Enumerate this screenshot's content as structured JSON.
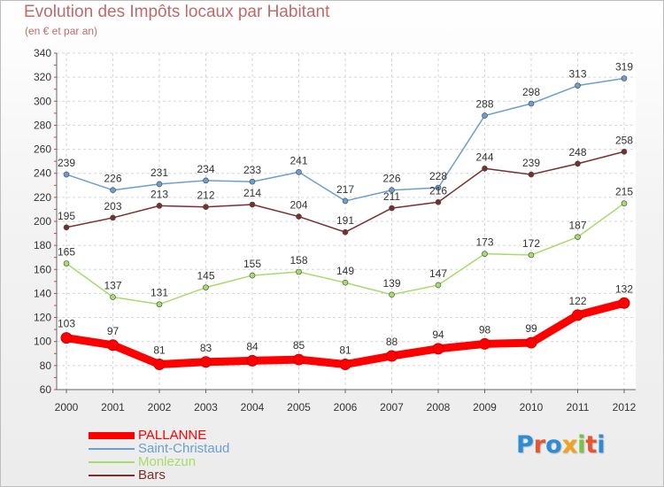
{
  "header": {
    "title": "Evolution des Impôts locaux par Habitant",
    "subtitle": "(en € et par an)"
  },
  "logo": {
    "letters": [
      "P",
      "r",
      "o",
      "x",
      "i",
      "t",
      "i"
    ],
    "colors": [
      "#2e8bd6",
      "#e8542f",
      "#2e8bd6",
      "#f2a21b",
      "#7cc243",
      "#e8542f",
      "#2e8bd6"
    ]
  },
  "chart_data": {
    "type": "line",
    "title": "Evolution des Impôts locaux par Habitant",
    "subtitle": "(en € et par an)",
    "xlabel": "",
    "ylabel": "",
    "x": [
      "2000",
      "2001",
      "2002",
      "2003",
      "2004",
      "2005",
      "2006",
      "2007",
      "2008",
      "2009",
      "2010",
      "2011",
      "2012"
    ],
    "ylim": [
      60,
      340
    ],
    "yticks": [
      60,
      80,
      100,
      120,
      140,
      160,
      180,
      200,
      220,
      240,
      260,
      280,
      300,
      320,
      340
    ],
    "grid": true,
    "legend_position": "bottom-left",
    "series": [
      {
        "name": "PALLANNE",
        "color": "#ff0000",
        "values": [
          103,
          97,
          81,
          83,
          84,
          85,
          81,
          88,
          94,
          98,
          99,
          122,
          132
        ]
      },
      {
        "name": "Saint-Christaud",
        "color": "#6a9fd0",
        "values": [
          239,
          226,
          231,
          234,
          233,
          241,
          217,
          226,
          228,
          288,
          298,
          313,
          319
        ]
      },
      {
        "name": "Monlezun",
        "color": "#a6dc6b",
        "values": [
          165,
          137,
          131,
          145,
          155,
          158,
          149,
          139,
          147,
          173,
          172,
          187,
          215
        ]
      },
      {
        "name": "Bars",
        "color": "#7a2e2e",
        "values": [
          195,
          203,
          213,
          212,
          214,
          204,
          191,
          211,
          216,
          244,
          239,
          248,
          258
        ]
      }
    ],
    "data_labels": {
      "PALLANNE": [
        "103",
        "97",
        "81",
        "83",
        "84",
        "85",
        "81",
        "88",
        "94",
        "98",
        "99",
        "122",
        "132"
      ],
      "Saint-Christaud": [
        "239",
        "226",
        "231",
        "234",
        "233",
        "241",
        "217",
        "226",
        "228",
        "288",
        "298",
        "313",
        "319"
      ],
      "Monlezun": [
        "165",
        "137",
        "131",
        "145",
        "155",
        "158",
        "149",
        "139",
        "147",
        "173",
        "172",
        "187",
        "215"
      ],
      "Bars": [
        "195",
        "203",
        "213",
        "212",
        "214",
        "204",
        "191",
        "211",
        "216",
        "244",
        "239",
        "248",
        "258"
      ]
    }
  }
}
